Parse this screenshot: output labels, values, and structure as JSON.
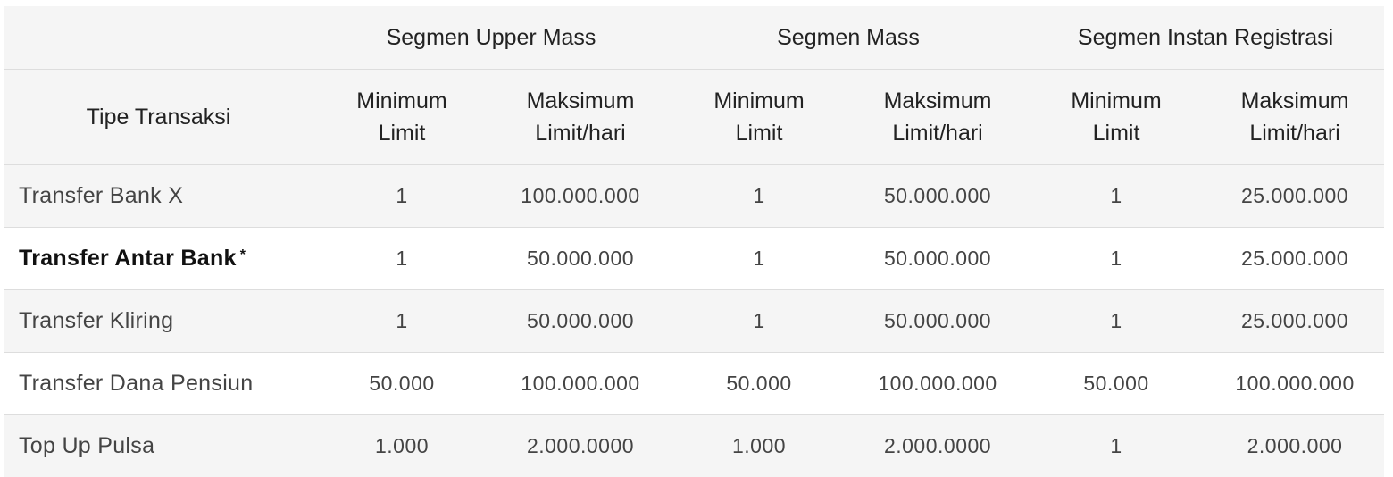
{
  "header": {
    "segments": [
      "Segmen Upper Mass",
      "Segmen Mass",
      "Segmen Instan Registrasi"
    ],
    "type_label": "Tipe Transaksi",
    "min_label_line1": "Minimum",
    "min_label_line2": "Limit",
    "max_label_line1": "Maksimum",
    "max_label_line2": "Limit/hari"
  },
  "rows": [
    {
      "type": "Transfer Bank  X",
      "bold": false,
      "values": [
        "1",
        "100.000.000",
        "1",
        "50.000.000",
        "1",
        "25.000.000"
      ]
    },
    {
      "type": "Transfer Antar Bank",
      "bold": true,
      "asterisk": "*",
      "values": [
        "1",
        "50.000.000",
        "1",
        "50.000.000",
        "1",
        "25.000.000"
      ]
    },
    {
      "type": "Transfer Kliring",
      "bold": false,
      "values": [
        "1",
        "50.000.000",
        "1",
        "50.000.000",
        "1",
        "25.000.000"
      ]
    },
    {
      "type": "Transfer Dana Pensiun",
      "bold": false,
      "values": [
        "50.000",
        "100.000.000",
        "50.000",
        "100.000.000",
        "50.000",
        "100.000.000"
      ]
    },
    {
      "type": "Top Up Pulsa",
      "bold": false,
      "values": [
        "1.000",
        "2.000.0000",
        "1.000",
        "2.000.0000",
        "1",
        "2.000.000"
      ]
    }
  ]
}
